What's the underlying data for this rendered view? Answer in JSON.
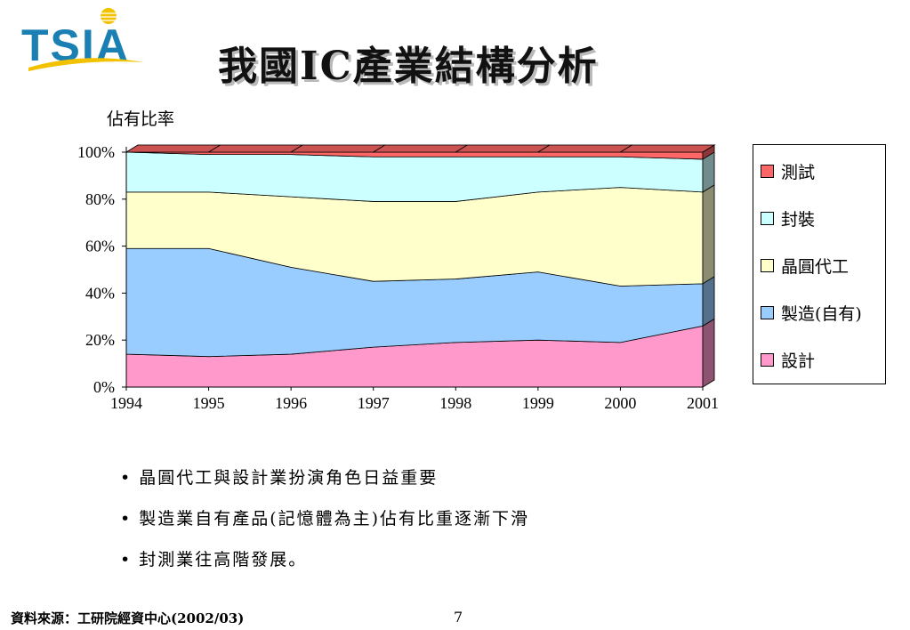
{
  "logo": {
    "text": "TSIA",
    "colors": {
      "primary": "#1a7fb2",
      "accent": "#f2c200"
    }
  },
  "title": "我國IC產業結構分析",
  "chart_data": {
    "type": "area",
    "stacked": true,
    "percent": true,
    "ylabel": "佔有比率",
    "ylim": [
      0,
      100
    ],
    "yticks": [
      "0%",
      "20%",
      "40%",
      "60%",
      "80%",
      "100%"
    ],
    "x": [
      "1994",
      "1995",
      "1996",
      "1997",
      "1998",
      "1999",
      "2000",
      "2001"
    ],
    "legend_position": "right",
    "series": [
      {
        "name": "設計",
        "color": "#ff99cc",
        "values": [
          14,
          13,
          14,
          17,
          19,
          20,
          19,
          26
        ]
      },
      {
        "name": "製造(自有)",
        "color": "#99ccff",
        "values": [
          45,
          46,
          37,
          28,
          27,
          29,
          24,
          18
        ]
      },
      {
        "name": "晶圓代工",
        "color": "#ffffcc",
        "values": [
          24,
          24,
          30,
          34,
          33,
          34,
          42,
          39
        ]
      },
      {
        "name": "封裝",
        "color": "#ccffff",
        "values": [
          17,
          16,
          18,
          19,
          19,
          15,
          13,
          14
        ]
      },
      {
        "name": "測試",
        "color": "#ff6666",
        "values": [
          0,
          1,
          1,
          2,
          2,
          2,
          2,
          3
        ]
      }
    ],
    "grid": false
  },
  "legend_order": [
    4,
    3,
    2,
    1,
    0
  ],
  "bullets": [
    "晶圓代工與設計業扮演角色日益重要",
    "製造業自有產品(記憶體為主)佔有比重逐漸下滑",
    "封測業往高階發展。"
  ],
  "bullet_marker": "•",
  "footer": {
    "source": "資料來源：工研院經資中心(2002/03)",
    "page": "7"
  }
}
